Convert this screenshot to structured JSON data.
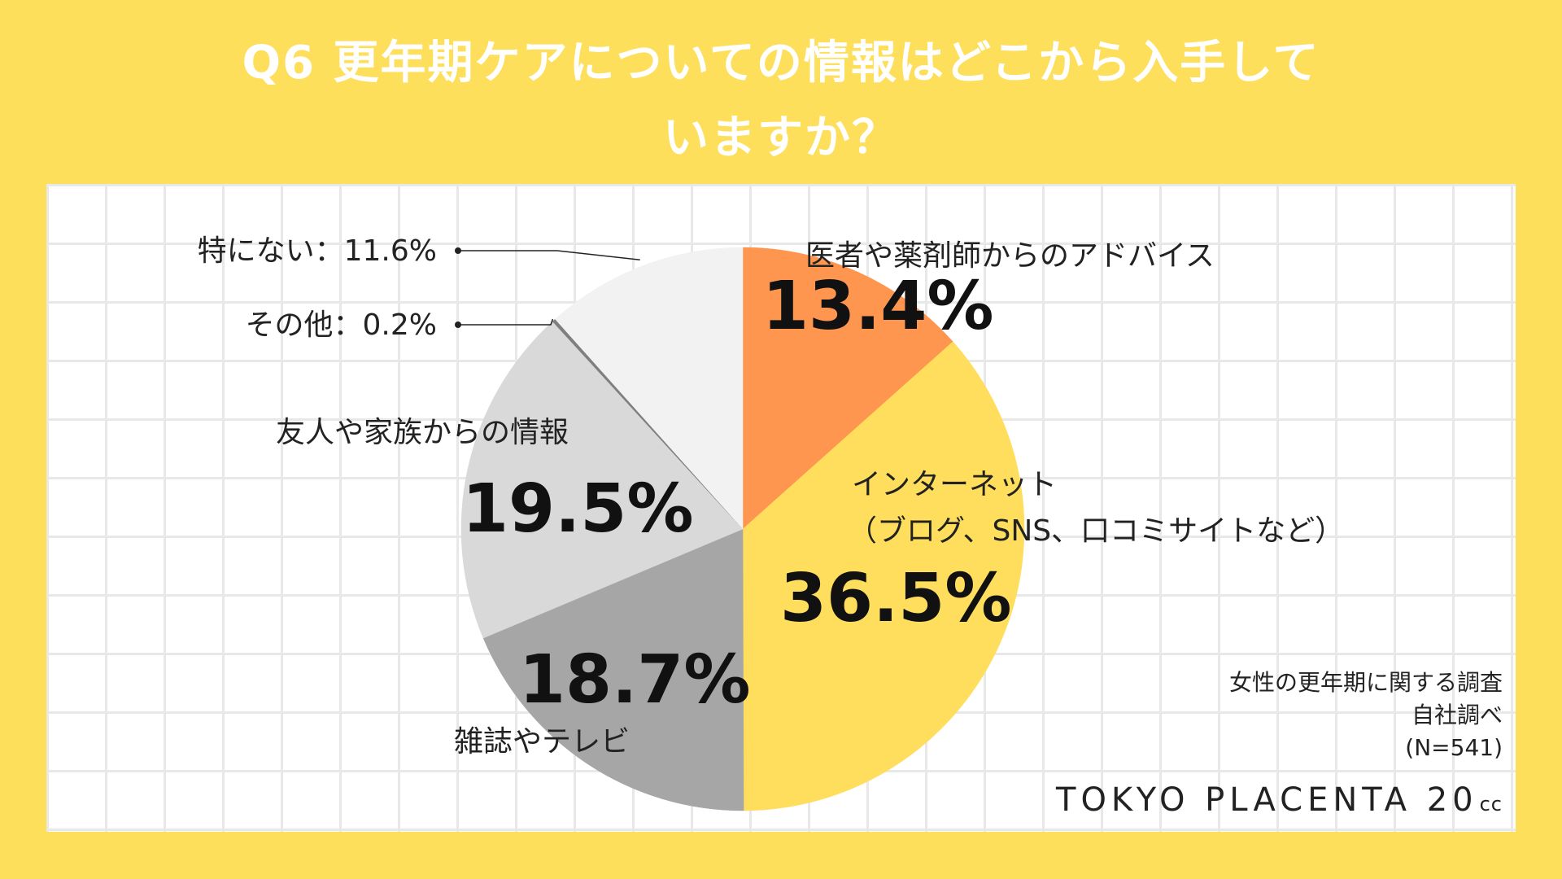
{
  "chart_data": {
    "type": "pie",
    "title_lines": [
      "Q6  更年期ケアについての情報はどこから入手して",
      "いますか？"
    ],
    "slices": [
      {
        "label": "医者や薬剤師からのアドバイス",
        "value": 13.4,
        "value_label": "13.4%",
        "color": "#FF9650"
      },
      {
        "label": "インターネット",
        "label2": "（ブログ、SNS、口コミサイトなど）",
        "value": 36.5,
        "value_label": "36.5%",
        "color": "#FEDE5C"
      },
      {
        "label": "雑誌やテレビ",
        "value": 18.7,
        "value_label": "18.7%",
        "color": "#A6A6A6"
      },
      {
        "label": "友人や家族からの情報",
        "value": 19.5,
        "value_label": "19.5%",
        "color": "#D9D9D9"
      },
      {
        "label": "その他：0.2%",
        "value": 0.2,
        "value_label": "0.2%",
        "color": "#7F7F7F"
      },
      {
        "label": "特にない：11.6%",
        "value": 11.6,
        "value_label": "11.6%",
        "color": "#F2F2F2"
      }
    ],
    "source_lines": [
      "女性の更年期に関する調査",
      "自社調べ",
      "(N=541)"
    ],
    "brand": {
      "main": "TOKYO PLACENTA 20",
      "suffix": "cc"
    }
  }
}
